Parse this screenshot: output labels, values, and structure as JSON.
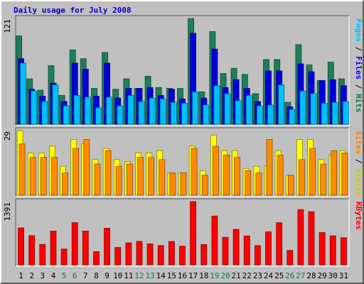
{
  "chart_data": {
    "type": "bar",
    "title": "Daily usage for July 2008",
    "categories": [
      "1",
      "2",
      "3",
      "4",
      "5",
      "6",
      "7",
      "8",
      "9",
      "10",
      "11",
      "12",
      "13",
      "14",
      "15",
      "16",
      "17",
      "18",
      "19",
      "20",
      "21",
      "22",
      "23",
      "24",
      "25",
      "26",
      "27",
      "28",
      "29",
      "30",
      "31"
    ],
    "weekend_days": [
      "5",
      "6",
      "12",
      "13",
      "19",
      "20",
      "26",
      "27"
    ],
    "panels": [
      {
        "id": "hits-files-pages",
        "max_label": "121",
        "ylim": [
          0,
          121
        ],
        "axis_legend": [
          {
            "text": "Hits",
            "color": "#008040"
          },
          {
            "text": " / ",
            "color": "#000000"
          },
          {
            "text": "Files",
            "color": "#0000ff"
          },
          {
            "text": " / ",
            "color": "#000000"
          },
          {
            "text": "Pages",
            "color": "#00bfff"
          }
        ],
        "series": [
          {
            "name": "Hits",
            "color": "#1b8058",
            "values": [
              101,
              52,
              39,
              67,
              33,
              85,
              75,
              41,
              82,
              40,
              52,
              41,
              55,
              42,
              41,
              41,
              121,
              37,
              106,
              58,
              64,
              57,
              35,
              74,
              74,
              25,
              91,
              68,
              50,
              71,
              52
            ]
          },
          {
            "name": "Files",
            "color": "#0000dd",
            "values": [
              75,
              40,
              32,
              47,
              26,
              70,
              63,
              32,
              70,
              30,
              41,
              41,
              42,
              33,
              40,
              29,
              104,
              30,
              86,
              42,
              51,
              41,
              26,
              61,
              61,
              20,
              69,
              60,
              50,
              51,
              44
            ]
          },
          {
            "name": "Pages",
            "color": "#00bfff",
            "values": [
              70,
              38,
              26,
              45,
              21,
              33,
              31,
              19,
              31,
              21,
              33,
              26,
              30,
              29,
              25,
              24,
              37,
              22,
              44,
              35,
              27,
              33,
              21,
              22,
              45,
              17,
              38,
              35,
              24,
              25,
              26
            ]
          }
        ]
      },
      {
        "id": "visits-sites",
        "max_label": "29",
        "ylim": [
          0,
          29
        ],
        "axis_legend": [
          {
            "text": "Visits",
            "color": "#cccc00"
          },
          {
            "text": " / ",
            "color": "#000000"
          },
          {
            "text": "Sites",
            "color": "#ff8000"
          }
        ],
        "series": [
          {
            "name": "Visits",
            "color": "#ffff00",
            "values": [
              29,
              19,
              19,
              22,
              13,
              25,
              23,
              16,
              21,
              16,
              15,
              19,
              19,
              20,
              10,
              10,
              22,
              11,
              27,
              20,
              20,
              12,
              13,
              13,
              20,
              9,
              25,
              25,
              16,
              18,
              20
            ]
          },
          {
            "name": "Sites",
            "color": "#ff8c00",
            "values": [
              23,
              17,
              17,
              17,
              10,
              21,
              25,
              14,
              20,
              13,
              14,
              17,
              17,
              16,
              10,
              10,
              21,
              9,
              22,
              18,
              17,
              11,
              10,
              25,
              18,
              9,
              16,
              21,
              14,
              20,
              19
            ]
          }
        ]
      },
      {
        "id": "kbytes",
        "max_label": "1391",
        "ylim": [
          0,
          1391
        ],
        "axis_legend": [
          {
            "text": "KBytes",
            "color": "#ff0000"
          }
        ],
        "series": [
          {
            "name": "KBytes",
            "color": "#ff0000",
            "values": [
              813,
              642,
              450,
              742,
              347,
              929,
              743,
              290,
              807,
              381,
              484,
              517,
              462,
              423,
              514,
              409,
              1391,
              445,
              1076,
              606,
              782,
              636,
              423,
              727,
              929,
              318,
              1218,
              1169,
              709,
              640,
              597
            ]
          }
        ]
      }
    ],
    "xaxis_colors": {
      "weekday": "#000000",
      "weekend": "#00805f"
    }
  }
}
